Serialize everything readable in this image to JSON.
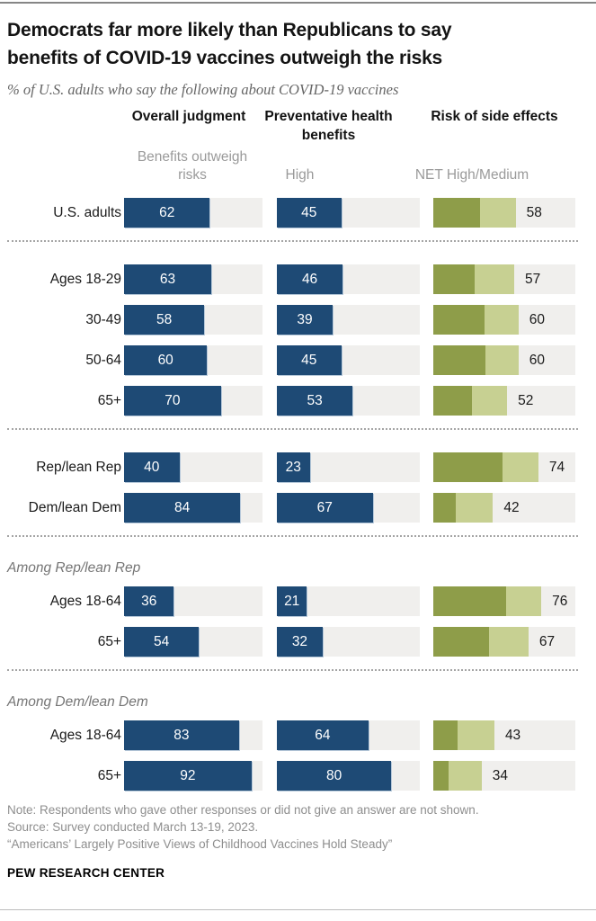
{
  "header": {
    "title_lines": [
      "Democrats far more likely than Republicans to say",
      "benefits of COVID-19 vaccines outweigh the risks"
    ],
    "subtitle": "% of U.S. adults who say the following about COVID-19 vaccines"
  },
  "chart_data": {
    "type": "bar",
    "orientation": "horizontal",
    "axis_range": [
      0,
      100
    ],
    "grid": false,
    "legend": false,
    "colors": {
      "bar_blue": "#1e4a75",
      "risk_high_olive": "#8e9d49",
      "risk_medium_olive": "#c7d092",
      "track_gray": "#f0efed"
    },
    "measures": [
      {
        "key": "overall",
        "header": "Overall judgment",
        "sublabel": "Benefits outweigh risks",
        "style": "single"
      },
      {
        "key": "preventative",
        "header": "Preventative health benefits",
        "sublabel": "High",
        "style": "single"
      },
      {
        "key": "risk",
        "header": "Risk of side effects",
        "sublabel": "NET High/Medium",
        "style": "stacked",
        "label_shown": "net"
      }
    ],
    "sections": [
      {
        "rows": [
          {
            "label": "U.S. adults",
            "overall": 62,
            "preventative": 45,
            "risk_net": 58,
            "risk_high_est": 33,
            "risk_medium_est": 25
          }
        ],
        "separator_after": true
      },
      {
        "rows": [
          {
            "label": "Ages 18-29",
            "overall": 63,
            "preventative": 46,
            "risk_net": 57,
            "risk_high_est": 29,
            "risk_medium_est": 28
          },
          {
            "label": "30-49",
            "overall": 58,
            "preventative": 39,
            "risk_net": 60,
            "risk_high_est": 36,
            "risk_medium_est": 24
          },
          {
            "label": "50-64",
            "overall": 60,
            "preventative": 45,
            "risk_net": 60,
            "risk_high_est": 37,
            "risk_medium_est": 23
          },
          {
            "label": "65+",
            "overall": 70,
            "preventative": 53,
            "risk_net": 52,
            "risk_high_est": 27,
            "risk_medium_est": 25
          }
        ],
        "separator_after": true
      },
      {
        "rows": [
          {
            "label": "Rep/lean Rep",
            "overall": 40,
            "preventative": 23,
            "risk_net": 74,
            "risk_high_est": 49,
            "risk_medium_est": 25
          },
          {
            "label": "Dem/lean Dem",
            "overall": 84,
            "preventative": 67,
            "risk_net": 42,
            "risk_high_est": 16,
            "risk_medium_est": 26
          }
        ],
        "separator_after": true
      },
      {
        "title": "Among Rep/lean Rep",
        "rows": [
          {
            "label": "Ages 18-64",
            "overall": 36,
            "preventative": 21,
            "risk_net": 76,
            "risk_high_est": 51,
            "risk_medium_est": 25
          },
          {
            "label": "65+",
            "overall": 54,
            "preventative": 32,
            "risk_net": 67,
            "risk_high_est": 39,
            "risk_medium_est": 28
          }
        ],
        "separator_after": true
      },
      {
        "title": "Among Dem/lean Dem",
        "rows": [
          {
            "label": "Ages 18-64",
            "overall": 83,
            "preventative": 64,
            "risk_net": 43,
            "risk_high_est": 17,
            "risk_medium_est": 26
          },
          {
            "label": "65+",
            "overall": 92,
            "preventative": 80,
            "risk_net": 34,
            "risk_high_est": 11,
            "risk_medium_est": 23
          }
        ],
        "separator_after": false
      }
    ]
  },
  "footer": {
    "note": "Note: Respondents who gave other responses or did not give an answer are not shown.",
    "source": "Source: Survey conducted March 13-19, 2023.",
    "report": "“Americans’ Largely Positive Views of Childhood Vaccines Hold Steady”",
    "brand": "PEW RESEARCH CENTER"
  }
}
